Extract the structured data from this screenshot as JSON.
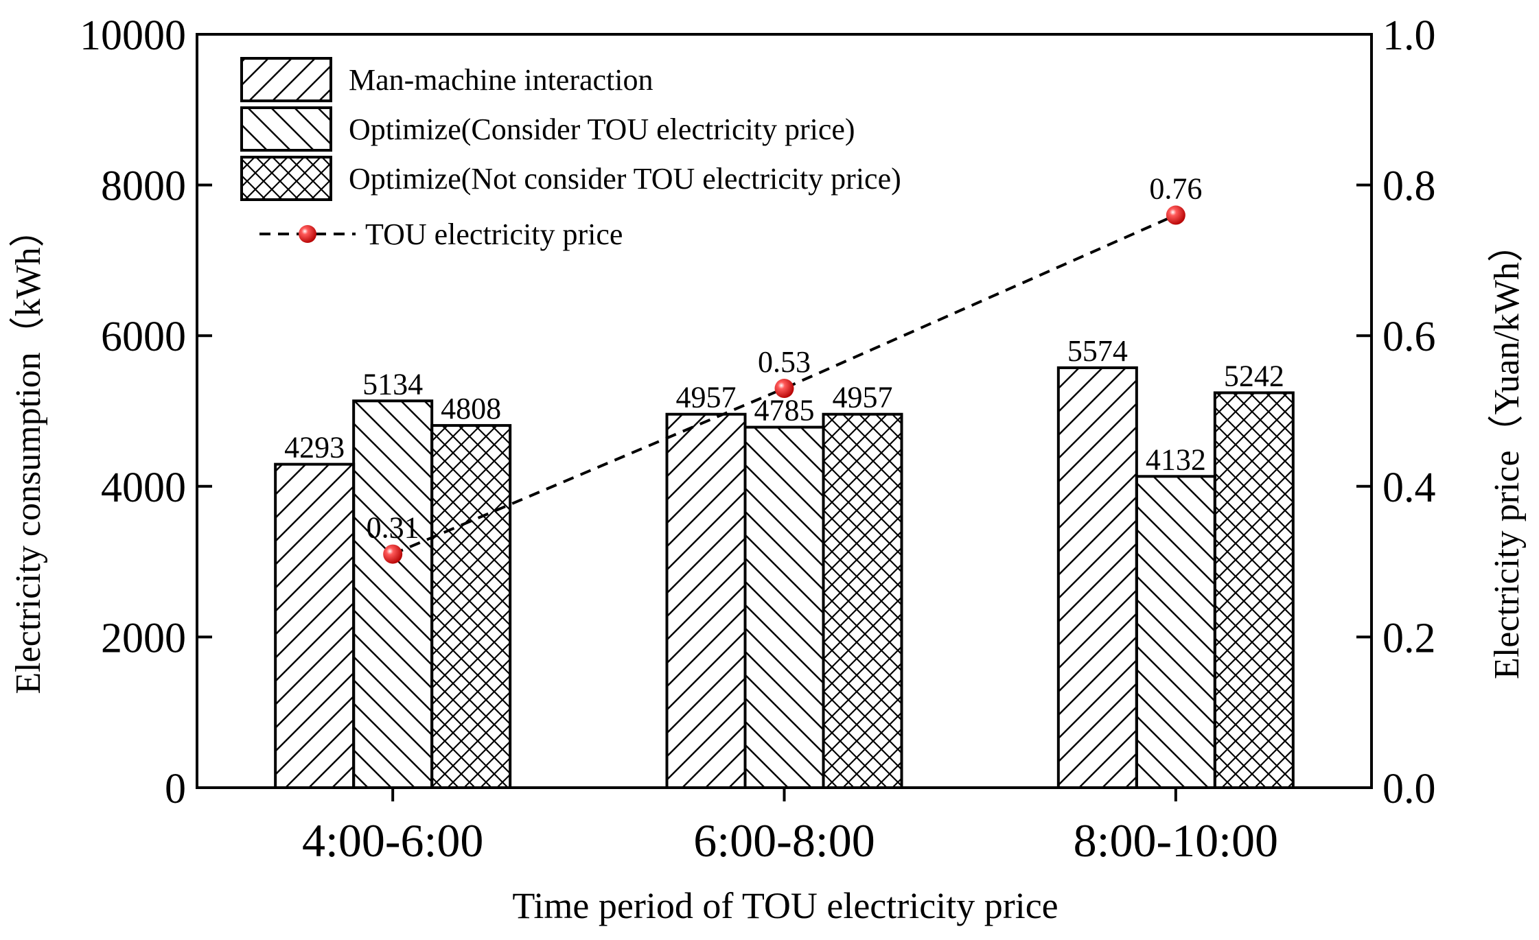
{
  "chart_data": {
    "type": "bar",
    "title": "",
    "xlabel": "Time period of TOU electricity price",
    "ylabel": "Electricity consumption（kWh）",
    "y2label": "Electricity price（Yuan/kWh）",
    "ylim": [
      0,
      10000
    ],
    "y2lim": [
      0.0,
      1.0
    ],
    "yticks": [
      "0",
      "2000",
      "4000",
      "6000",
      "8000",
      "10000"
    ],
    "y2ticks": [
      "0.0",
      "0.2",
      "0.4",
      "0.6",
      "0.8",
      "1.0"
    ],
    "categories": [
      "4:00-6:00",
      "6:00-8:00",
      "8:00-10:00"
    ],
    "grid": false,
    "legend_position": "top-left",
    "series": [
      {
        "name": "Man-machine interaction",
        "type": "bar",
        "pattern": "forward-diagonal",
        "values": [
          4293,
          4957,
          5574
        ]
      },
      {
        "name": "Optimize(Consider TOU electricity price)",
        "type": "bar",
        "pattern": "back-diagonal",
        "values": [
          5134,
          4785,
          4132
        ]
      },
      {
        "name": "Optimize(Not consider TOU electricity price)",
        "type": "bar",
        "pattern": "cross-hatch",
        "values": [
          4808,
          4957,
          5242
        ]
      }
    ],
    "line_series": {
      "name": "TOU electricity price",
      "axis": "right",
      "style": "dashed",
      "marker_color": "#e8121b",
      "values": [
        0.31,
        0.53,
        0.76
      ],
      "labels": [
        "0.31",
        "0.53",
        "0.76"
      ]
    }
  }
}
